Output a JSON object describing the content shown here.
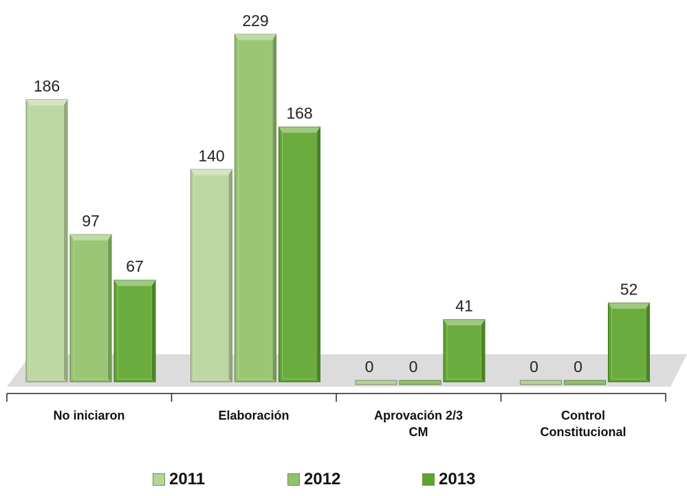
{
  "chart_data": {
    "type": "bar",
    "categories": [
      "No iniciaron",
      "Elaboración",
      "Aprovación 2/3\nCM",
      "Control\nConstitucional"
    ],
    "series": [
      {
        "name": "2011",
        "color": "#b7d39a",
        "values": [
          186,
          140,
          0,
          0
        ]
      },
      {
        "name": "2012",
        "color": "#92c16a",
        "values": [
          97,
          229,
          0,
          0
        ]
      },
      {
        "name": "2013",
        "color": "#5ea52e",
        "values": [
          67,
          168,
          41,
          52
        ]
      }
    ]
  }
}
